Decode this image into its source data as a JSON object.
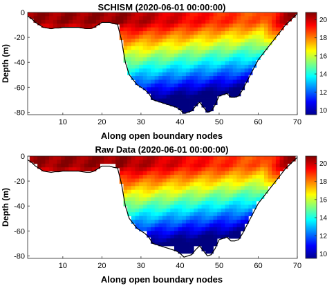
{
  "chart_data": [
    {
      "type": "heatmap",
      "title": "SCHISM (2020-06-01 00:00:00)",
      "xlabel": "Along open boundary nodes",
      "ylabel": "Depth (m)",
      "xlim": [
        1,
        70
      ],
      "ylim": [
        -82,
        0
      ],
      "xticks": [
        "10",
        "20",
        "30",
        "40",
        "50",
        "60",
        "70"
      ],
      "yticks": [
        "0",
        "-20",
        "-40",
        "-60",
        "-80"
      ],
      "colorbar": {
        "range": [
          9.5,
          20.8
        ],
        "ticks": [
          "20",
          "18",
          "16",
          "14",
          "12",
          "10"
        ],
        "colormap": "jet"
      },
      "bottom_profile": {
        "x": [
          1,
          2,
          3,
          4,
          5,
          6,
          7,
          8,
          9,
          10,
          11,
          12,
          13,
          14,
          15,
          16,
          17,
          18,
          19,
          20,
          21,
          22,
          23,
          24,
          25,
          26,
          27,
          28,
          29,
          30,
          31,
          32,
          33,
          34,
          35,
          36,
          37,
          38,
          39,
          40,
          41,
          42,
          43,
          44,
          45,
          46,
          47,
          48,
          49,
          50,
          51,
          52,
          53,
          54,
          55,
          56,
          57,
          58,
          59,
          60,
          61,
          62,
          63,
          64,
          65,
          66,
          67,
          68,
          69,
          70
        ],
        "depth": [
          -3,
          -5,
          -8,
          -10,
          -12,
          -12.5,
          -13,
          -12.5,
          -12.5,
          -12,
          -12,
          -12,
          -12,
          -12,
          -12.5,
          -13,
          -13,
          -12,
          -10,
          -8,
          -8,
          -8,
          -9,
          -9.5,
          -22,
          -40,
          -50,
          -54,
          -58,
          -60,
          -62,
          -65,
          -70,
          -71,
          -72,
          -73,
          -74,
          -75,
          -76,
          -78,
          -81,
          -80,
          -79,
          -75,
          -72,
          -76,
          -80,
          -79,
          -74,
          -67,
          -66,
          -65,
          -68,
          -68,
          -67,
          -62,
          -56,
          -50,
          -44,
          -38,
          -34,
          -30,
          -26,
          -22,
          -18,
          -14,
          -10,
          -7,
          -4,
          -1
        ]
      }
    },
    {
      "type": "heatmap",
      "title": "Raw Data (2020-06-01 00:00:00)",
      "xlabel": "Along open boundary nodes",
      "ylabel": "Depth (m)",
      "xlim": [
        1,
        70
      ],
      "ylim": [
        -82,
        0
      ],
      "xticks": [
        "10",
        "20",
        "30",
        "40",
        "50",
        "60",
        "70"
      ],
      "yticks": [
        "0",
        "-20",
        "-40",
        "-60",
        "-80"
      ],
      "colorbar": {
        "range": [
          9.5,
          20.8
        ],
        "ticks": [
          "20",
          "18",
          "16",
          "14",
          "12",
          "10"
        ],
        "colormap": "jet"
      },
      "bottom_profile": {
        "x": [
          1,
          2,
          3,
          4,
          5,
          6,
          7,
          8,
          9,
          10,
          11,
          12,
          13,
          14,
          15,
          16,
          17,
          18,
          19,
          20,
          21,
          22,
          23,
          24,
          25,
          26,
          27,
          28,
          29,
          30,
          31,
          32,
          33,
          34,
          35,
          36,
          37,
          38,
          39,
          40,
          41,
          42,
          43,
          44,
          45,
          46,
          47,
          48,
          49,
          50,
          51,
          52,
          53,
          54,
          55,
          56,
          57,
          58,
          59,
          60,
          61,
          62,
          63,
          64,
          65,
          66,
          67,
          68,
          69,
          70
        ],
        "depth": [
          -3,
          -5,
          -8,
          -10,
          -12,
          -12.5,
          -13,
          -12.5,
          -12.5,
          -12,
          -12,
          -12,
          -12,
          -12,
          -12.5,
          -13,
          -13,
          -12,
          -10,
          -8,
          -8,
          -8,
          -9,
          -9.5,
          -22,
          -40,
          -50,
          -54,
          -58,
          -60,
          -62,
          -65,
          -70,
          -71,
          -72,
          -73,
          -74,
          -75,
          -76,
          -78,
          -81,
          -80,
          -79,
          -75,
          -72,
          -76,
          -80,
          -79,
          -74,
          -67,
          -66,
          -65,
          -68,
          -68,
          -67,
          -62,
          -56,
          -50,
          -44,
          -38,
          -34,
          -30,
          -26,
          -22,
          -18,
          -14,
          -10,
          -7,
          -4,
          -1
        ]
      }
    }
  ]
}
